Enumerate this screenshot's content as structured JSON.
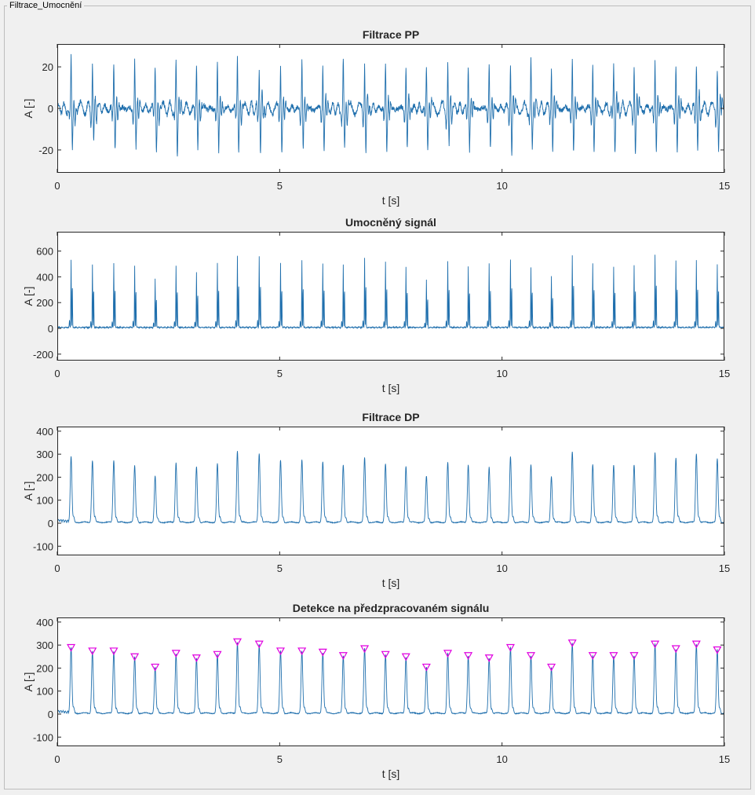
{
  "window": {
    "panel_title": "Filtrace_Umocnění"
  },
  "colors": {
    "signal": "#1f6fad",
    "marker": "#e000e0",
    "axes": "#262626",
    "plot_bg": "#ffffff"
  },
  "chart_data": [
    {
      "type": "line",
      "title": "Filtrace PP",
      "xlabel": "t [s]",
      "ylabel": "A [-]",
      "xlim": [
        0,
        15
      ],
      "ylim": [
        -31,
        31
      ],
      "xticks": [
        0,
        5,
        10,
        15
      ],
      "yticks": [
        -20,
        0,
        20
      ],
      "grid": false,
      "signal_kind": "bandpass",
      "beats": {
        "times": [
          0.31,
          0.79,
          1.27,
          1.74,
          2.2,
          2.67,
          3.13,
          3.6,
          4.05,
          4.54,
          5.02,
          5.5,
          5.97,
          6.43,
          6.91,
          7.38,
          7.84,
          8.3,
          8.78,
          9.24,
          9.71,
          10.19,
          10.65,
          11.11,
          11.58,
          12.04,
          12.51,
          12.97,
          13.44,
          13.91,
          14.37,
          14.84
        ],
        "peaks": [
          23,
          22,
          21,
          22,
          20,
          21,
          20,
          22,
          23,
          22,
          21,
          23,
          21,
          22,
          23,
          22,
          21,
          20,
          22,
          21,
          22,
          23,
          21,
          20,
          23,
          22,
          21,
          22,
          23,
          22,
          23,
          22
        ],
        "troughs": [
          -21,
          -18,
          -19,
          -18,
          -19,
          -20,
          -18,
          -19,
          -20,
          -20,
          -19,
          -20,
          -18,
          -19,
          -20,
          -20,
          -19,
          -17,
          -19,
          -18,
          -19,
          -20,
          -18,
          -18,
          -20,
          -19,
          -18,
          -19,
          -20,
          -19,
          -20,
          -18
        ]
      }
    },
    {
      "type": "line",
      "title": "Umocněný signál",
      "xlabel": "t [s]",
      "ylabel": "A [-]",
      "xlim": [
        0,
        15
      ],
      "ylim": [
        -250,
        750
      ],
      "xticks": [
        0,
        5,
        10,
        15
      ],
      "yticks": [
        -200,
        0,
        200,
        400,
        600
      ],
      "grid": false,
      "signal_kind": "squared",
      "beats": {
        "times": [
          0.31,
          0.79,
          1.27,
          1.74,
          2.2,
          2.67,
          3.13,
          3.6,
          4.05,
          4.54,
          5.02,
          5.5,
          5.97,
          6.43,
          6.91,
          7.38,
          7.84,
          8.3,
          8.78,
          9.24,
          9.71,
          10.19,
          10.65,
          11.11,
          11.58,
          12.04,
          12.51,
          12.97,
          13.44,
          13.91,
          14.37,
          14.84
        ],
        "peaks": [
          530,
          490,
          500,
          480,
          380,
          480,
          430,
          500,
          560,
          550,
          500,
          520,
          500,
          490,
          540,
          510,
          470,
          370,
          510,
          470,
          500,
          530,
          470,
          400,
          560,
          500,
          470,
          480,
          560,
          520,
          520,
          490
        ]
      }
    },
    {
      "type": "line",
      "title": "Filtrace DP",
      "xlabel": "t [s]",
      "ylabel": "A [-]",
      "xlim": [
        0,
        15
      ],
      "ylim": [
        -140,
        420
      ],
      "xticks": [
        0,
        5,
        10,
        15
      ],
      "yticks": [
        -100,
        0,
        100,
        200,
        300,
        400
      ],
      "grid": false,
      "signal_kind": "lowpass",
      "beats": {
        "times": [
          0.31,
          0.79,
          1.27,
          1.74,
          2.2,
          2.67,
          3.13,
          3.6,
          4.05,
          4.54,
          5.02,
          5.5,
          5.97,
          6.43,
          6.91,
          7.38,
          7.84,
          8.3,
          8.78,
          9.24,
          9.71,
          10.19,
          10.65,
          11.11,
          11.58,
          12.04,
          12.51,
          12.97,
          13.44,
          13.91,
          14.37,
          14.84
        ],
        "peaks": [
          285,
          270,
          270,
          245,
          200,
          260,
          240,
          255,
          310,
          300,
          270,
          270,
          265,
          250,
          280,
          255,
          245,
          200,
          260,
          250,
          240,
          285,
          250,
          200,
          305,
          250,
          250,
          250,
          300,
          280,
          300,
          275
        ]
      }
    },
    {
      "type": "line",
      "title": "Detekce na předzpracovaném signálu",
      "xlabel": "t [s]",
      "ylabel": "A [-]",
      "xlim": [
        0,
        15
      ],
      "ylim": [
        -140,
        420
      ],
      "xticks": [
        0,
        5,
        10,
        15
      ],
      "yticks": [
        -100,
        0,
        100,
        200,
        300,
        400
      ],
      "grid": false,
      "signal_kind": "lowpass",
      "markers": "triangle-down",
      "beats": {
        "times": [
          0.31,
          0.79,
          1.27,
          1.74,
          2.2,
          2.67,
          3.13,
          3.6,
          4.05,
          4.54,
          5.02,
          5.5,
          5.97,
          6.43,
          6.91,
          7.38,
          7.84,
          8.3,
          8.78,
          9.24,
          9.71,
          10.19,
          10.65,
          11.11,
          11.58,
          12.04,
          12.51,
          12.97,
          13.44,
          13.91,
          14.37,
          14.84
        ],
        "peaks": [
          285,
          270,
          270,
          245,
          200,
          260,
          240,
          255,
          310,
          300,
          270,
          270,
          265,
          250,
          280,
          255,
          245,
          200,
          260,
          250,
          240,
          285,
          250,
          200,
          305,
          250,
          250,
          250,
          300,
          280,
          300,
          275
        ]
      }
    }
  ]
}
